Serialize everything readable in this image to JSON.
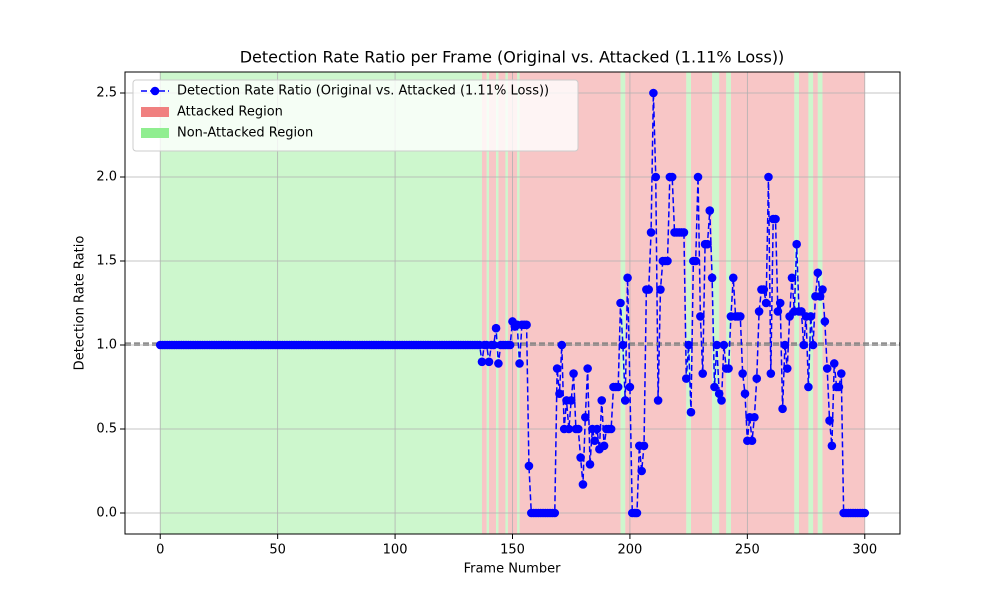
{
  "chart_data": {
    "type": "line",
    "title": "Detection Rate Ratio per Frame (Original vs. Attacked (1.11% Loss))",
    "x_label": "Frame Number",
    "y_label": "Detection Rate Ratio",
    "x": [
      0,
      1,
      2,
      3,
      4,
      5,
      6,
      7,
      8,
      9,
      10,
      11,
      12,
      13,
      14,
      15,
      16,
      17,
      18,
      19,
      20,
      21,
      22,
      23,
      24,
      25,
      26,
      27,
      28,
      29,
      30,
      31,
      32,
      33,
      34,
      35,
      36,
      37,
      38,
      39,
      40,
      41,
      42,
      43,
      44,
      45,
      46,
      47,
      48,
      49,
      50,
      51,
      52,
      53,
      54,
      55,
      56,
      57,
      58,
      59,
      60,
      61,
      62,
      63,
      64,
      65,
      66,
      67,
      68,
      69,
      70,
      71,
      72,
      73,
      74,
      75,
      76,
      77,
      78,
      79,
      80,
      81,
      82,
      83,
      84,
      85,
      86,
      87,
      88,
      89,
      90,
      91,
      92,
      93,
      94,
      95,
      96,
      97,
      98,
      99,
      100,
      101,
      102,
      103,
      104,
      105,
      106,
      107,
      108,
      109,
      110,
      111,
      112,
      113,
      114,
      115,
      116,
      117,
      118,
      119,
      120,
      121,
      122,
      123,
      124,
      125,
      126,
      127,
      128,
      129,
      130,
      131,
      132,
      133,
      134,
      135,
      136,
      137,
      138,
      139,
      140,
      141,
      142,
      143,
      144,
      145,
      146,
      147,
      148,
      149,
      150,
      151,
      152,
      153,
      154,
      155,
      156,
      157,
      158,
      159,
      160,
      161,
      162,
      163,
      164,
      165,
      166,
      167,
      168,
      169,
      170,
      171,
      172,
      173,
      174,
      175,
      176,
      177,
      178,
      179,
      180,
      181,
      182,
      183,
      184,
      185,
      186,
      187,
      188,
      189,
      190,
      191,
      192,
      193,
      194,
      195,
      196,
      197,
      198,
      199,
      200,
      201,
      202,
      203,
      204,
      205,
      206,
      207,
      208,
      209,
      210,
      211,
      212,
      213,
      214,
      215,
      216,
      217,
      218,
      219,
      220,
      221,
      222,
      223,
      224,
      225,
      226,
      227,
      228,
      229,
      230,
      231,
      232,
      233,
      234,
      235,
      236,
      237,
      238,
      239,
      240,
      241,
      242,
      243,
      244,
      245,
      246,
      247,
      248,
      249,
      250,
      251,
      252,
      253,
      254,
      255,
      256,
      257,
      258,
      259,
      260,
      261,
      262,
      263,
      264,
      265,
      266,
      267,
      268,
      269,
      270,
      271,
      272,
      273,
      274,
      275,
      276,
      277,
      278,
      279,
      280,
      281,
      282,
      283,
      284,
      285,
      286,
      287,
      288,
      289,
      290,
      291,
      292,
      293,
      294,
      295,
      296,
      297,
      298,
      299,
      300
    ],
    "series": [
      {
        "name": "Detection Rate Ratio (Original vs. Attacked (1.11% Loss))",
        "color": "#0000ff",
        "values": [
          1,
          1,
          1,
          1,
          1,
          1,
          1,
          1,
          1,
          1,
          1,
          1,
          1,
          1,
          1,
          1,
          1,
          1,
          1,
          1,
          1,
          1,
          1,
          1,
          1,
          1,
          1,
          1,
          1,
          1,
          1,
          1,
          1,
          1,
          1,
          1,
          1,
          1,
          1,
          1,
          1,
          1,
          1,
          1,
          1,
          1,
          1,
          1,
          1,
          1,
          1,
          1,
          1,
          1,
          1,
          1,
          1,
          1,
          1,
          1,
          1,
          1,
          1,
          1,
          1,
          1,
          1,
          1,
          1,
          1,
          1,
          1,
          1,
          1,
          1,
          1,
          1,
          1,
          1,
          1,
          1,
          1,
          1,
          1,
          1,
          1,
          1,
          1,
          1,
          1,
          1,
          1,
          1,
          1,
          1,
          1,
          1,
          1,
          1,
          1,
          1,
          1,
          1,
          1,
          1,
          1,
          1,
          1,
          1,
          1,
          1,
          1,
          1,
          1,
          1,
          1,
          1,
          1,
          1,
          1,
          1,
          1,
          1,
          1,
          1,
          1,
          1,
          1,
          1,
          1,
          1,
          1,
          1,
          1,
          1,
          1,
          1,
          0.9,
          1,
          1,
          0.9,
          1,
          1,
          1.1,
          0.89,
          1,
          1,
          1,
          1,
          1,
          1.14,
          1.11,
          1.12,
          0.89,
          1.12,
          1.12,
          1.12,
          0.28,
          0,
          0,
          0,
          0,
          0,
          0,
          0,
          0,
          0,
          0,
          0,
          0.86,
          0.71,
          1,
          0.5,
          0.67,
          0.5,
          0.67,
          0.83,
          0.5,
          0.5,
          0.33,
          0.17,
          0.57,
          0.86,
          0.29,
          0.5,
          0.43,
          0.5,
          0.38,
          0.67,
          0.4,
          0.5,
          0.5,
          0.5,
          0.75,
          0.75,
          0.75,
          1.25,
          1,
          0.67,
          1.4,
          0.75,
          0,
          0,
          0,
          0.4,
          0.25,
          0.4,
          1.33,
          1.33,
          1.67,
          2.5,
          2,
          0.67,
          1.33,
          1.5,
          1.5,
          1.5,
          2,
          2,
          1.67,
          1.67,
          1.67,
          1.67,
          1.67,
          0.8,
          1,
          0.6,
          1.5,
          1.5,
          2,
          1.17,
          0.83,
          1.6,
          1.6,
          1.8,
          1.4,
          0.75,
          1,
          0.71,
          0.67,
          1,
          0.86,
          0.86,
          1.17,
          1.4,
          1.17,
          1.17,
          1.17,
          0.83,
          0.71,
          0.43,
          0.57,
          0.43,
          0.57,
          0.8,
          1.2,
          1.33,
          1.33,
          1.25,
          2,
          0.83,
          1.75,
          1.75,
          1.2,
          1.25,
          0.62,
          1,
          0.86,
          1.17,
          1.4,
          1.2,
          1.6,
          1.2,
          1.2,
          1,
          1.17,
          0.75,
          1.17,
          1,
          1.29,
          1.43,
          1.29,
          1.33,
          1.14,
          0.86,
          0.55,
          0.4,
          0.89,
          0.75,
          0.75,
          0.83,
          0,
          0,
          0,
          0,
          0,
          0,
          0,
          0,
          0,
          0
        ]
      }
    ],
    "regions": [
      {
        "name": "Attacked Region",
        "color": "#f08080",
        "spans": [
          {
            "start": 137,
            "end": 139
          },
          {
            "start": 140,
            "end": 143
          },
          {
            "start": 144,
            "end": 147
          },
          {
            "start": 148,
            "end": 152
          },
          {
            "start": 153,
            "end": 196
          },
          {
            "start": 198,
            "end": 224
          },
          {
            "start": 226,
            "end": 235
          },
          {
            "start": 238,
            "end": 241
          },
          {
            "start": 243,
            "end": 270
          },
          {
            "start": 272,
            "end": 276
          },
          {
            "start": 278,
            "end": 280
          },
          {
            "start": 282,
            "end": 300
          }
        ]
      },
      {
        "name": "Non-Attacked Region",
        "color": "#90ee90",
        "spans": [
          {
            "start": 0,
            "end": 137
          },
          {
            "start": 139,
            "end": 140
          },
          {
            "start": 143,
            "end": 144
          },
          {
            "start": 147,
            "end": 148
          },
          {
            "start": 152,
            "end": 153
          },
          {
            "start": 196,
            "end": 198
          },
          {
            "start": 224,
            "end": 226
          },
          {
            "start": 235,
            "end": 238
          },
          {
            "start": 241,
            "end": 243
          },
          {
            "start": 270,
            "end": 272
          },
          {
            "start": 276,
            "end": 278
          },
          {
            "start": 280,
            "end": 282
          }
        ]
      }
    ],
    "reference_lines": [
      1.0,
      1.011
    ],
    "reference_color": "#808080",
    "xlim": [
      -15,
      315
    ],
    "xticks": [
      0,
      50,
      100,
      150,
      200,
      250,
      300
    ],
    "ylim": [
      -0.125,
      2.625
    ],
    "yticks": [
      {
        "value": 0,
        "label": "0.0"
      },
      {
        "value": 0.5,
        "label": "0.5"
      },
      {
        "value": 1,
        "label": "1.0"
      },
      {
        "value": 1.5,
        "label": "1.5"
      },
      {
        "value": 2,
        "label": "2.0"
      },
      {
        "value": 2.5,
        "label": "2.5"
      }
    ],
    "grid": true,
    "legend": "upper left"
  }
}
